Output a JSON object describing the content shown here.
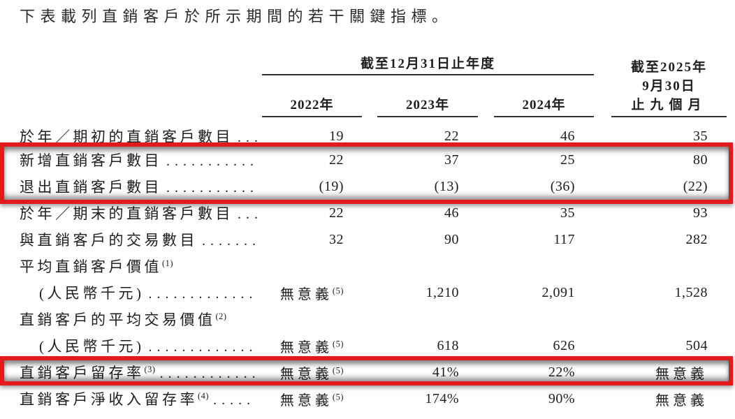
{
  "intro": "下表載列直銷客戶於所示期間的若干關鍵指標。",
  "highlight_color": "#e21a1c",
  "table": {
    "group_header": "截至12月31日止年度",
    "period_header": [
      "截至2025年",
      "9月30日",
      "止九個月"
    ],
    "year_headers": [
      "2022年",
      "2023年",
      "2024年"
    ],
    "rows": [
      {
        "label": "於年／期初的直銷客戶數目",
        "label_sup": "",
        "leader": "...",
        "v": [
          "19",
          "22",
          "46",
          "35"
        ],
        "v0_sup": ""
      },
      {
        "label": "新增直銷客戶數目",
        "label_sup": "",
        "leader": "...........",
        "v": [
          "22",
          "37",
          "25",
          "80"
        ],
        "v0_sup": ""
      },
      {
        "label": "退出直銷客戶數目",
        "label_sup": "",
        "leader": "...........",
        "v": [
          "(19)",
          "(13)",
          "(36)",
          "(22)"
        ],
        "v0_sup": ""
      },
      {
        "label": "於年／期末的直銷客戶數目",
        "label_sup": "",
        "leader": "...",
        "v": [
          "22",
          "46",
          "35",
          "93"
        ],
        "v0_sup": ""
      },
      {
        "label": "與直銷客戶的交易數目",
        "label_sup": "",
        "leader": ".......",
        "v": [
          "32",
          "90",
          "117",
          "282"
        ],
        "v0_sup": ""
      },
      {
        "label": "平均直銷客戶價值",
        "label_sup": "(1)",
        "leader": "",
        "v": [
          "",
          "",
          "",
          ""
        ],
        "v0_sup": ""
      },
      {
        "label": "(人民幣千元)",
        "label_sup": "",
        "leader": ".............",
        "v": [
          "無意義",
          "1,210",
          "2,091",
          "1,528"
        ],
        "v0_sup": "(5)"
      },
      {
        "label": "直銷客戶的平均交易價值",
        "label_sup": "(2)",
        "leader": "",
        "v": [
          "",
          "",
          "",
          ""
        ],
        "v0_sup": ""
      },
      {
        "label": "(人民幣千元)",
        "label_sup": "",
        "leader": ".............",
        "v": [
          "無意義",
          "618",
          "626",
          "504"
        ],
        "v0_sup": "(5)"
      },
      {
        "label": "直銷客戶留存率",
        "label_sup": "(3)",
        "leader": "............",
        "v": [
          "無意義",
          "41%",
          "22%",
          "無意義"
        ],
        "v0_sup": "(5)"
      },
      {
        "label": "直銷客戶淨收入留存率",
        "label_sup": "(4)",
        "leader": ".....",
        "v": [
          "無意義",
          "174%",
          "90%",
          "無意義"
        ],
        "v0_sup": "(5)"
      }
    ]
  }
}
